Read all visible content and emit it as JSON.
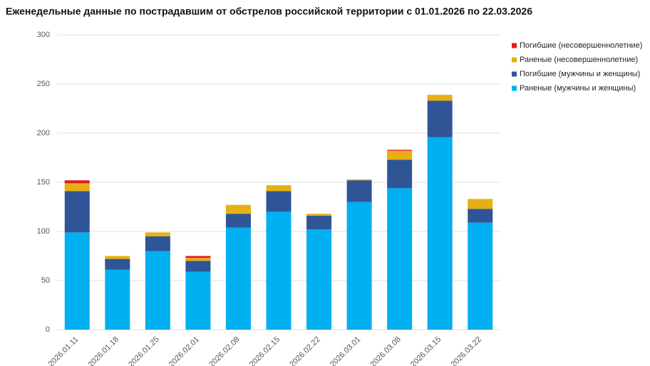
{
  "chart_data": {
    "type": "stacked_bar",
    "title": "Еженедельные данные по пострадавшим от обстрелов российской территории с 01.01.2026 по 22.03.2026",
    "categories": [
      "1-2026.01.11",
      "-2026.01.18",
      "-2026.01.25",
      "-2026.02.01",
      "-2026.02.08",
      "-2026.02.15",
      "-2026.02.22",
      "-2026.03.01",
      "-2026.03.08",
      "-2026.03.15",
      "-2026.03.22"
    ],
    "series": [
      {
        "name": "Раненые (мужчины и женщины)",
        "color": "#00b0f0",
        "values": [
          99,
          61,
          80,
          59,
          104,
          120,
          102,
          130,
          144,
          196,
          109
        ]
      },
      {
        "name": "Погибшие (мужчины и женщины)",
        "color": "#2f5597",
        "values": [
          42,
          11,
          15,
          11,
          14,
          21,
          14,
          22,
          29,
          37,
          14
        ]
      },
      {
        "name": "Раненые (несовершеннолетние)",
        "color": "#e6b012",
        "values": [
          8,
          3,
          4,
          3,
          9,
          6,
          2,
          1,
          9,
          6,
          10
        ]
      },
      {
        "name": "Погибшие (несовершеннолетние)",
        "color": "#e31a1c",
        "values": [
          3,
          0,
          0,
          2,
          0,
          0,
          0,
          0,
          1,
          0,
          0
        ]
      }
    ],
    "ylim": [
      0,
      300
    ],
    "yticks": [
      0,
      50,
      100,
      150,
      200,
      250,
      300
    ],
    "grid": true,
    "legend": "right"
  }
}
